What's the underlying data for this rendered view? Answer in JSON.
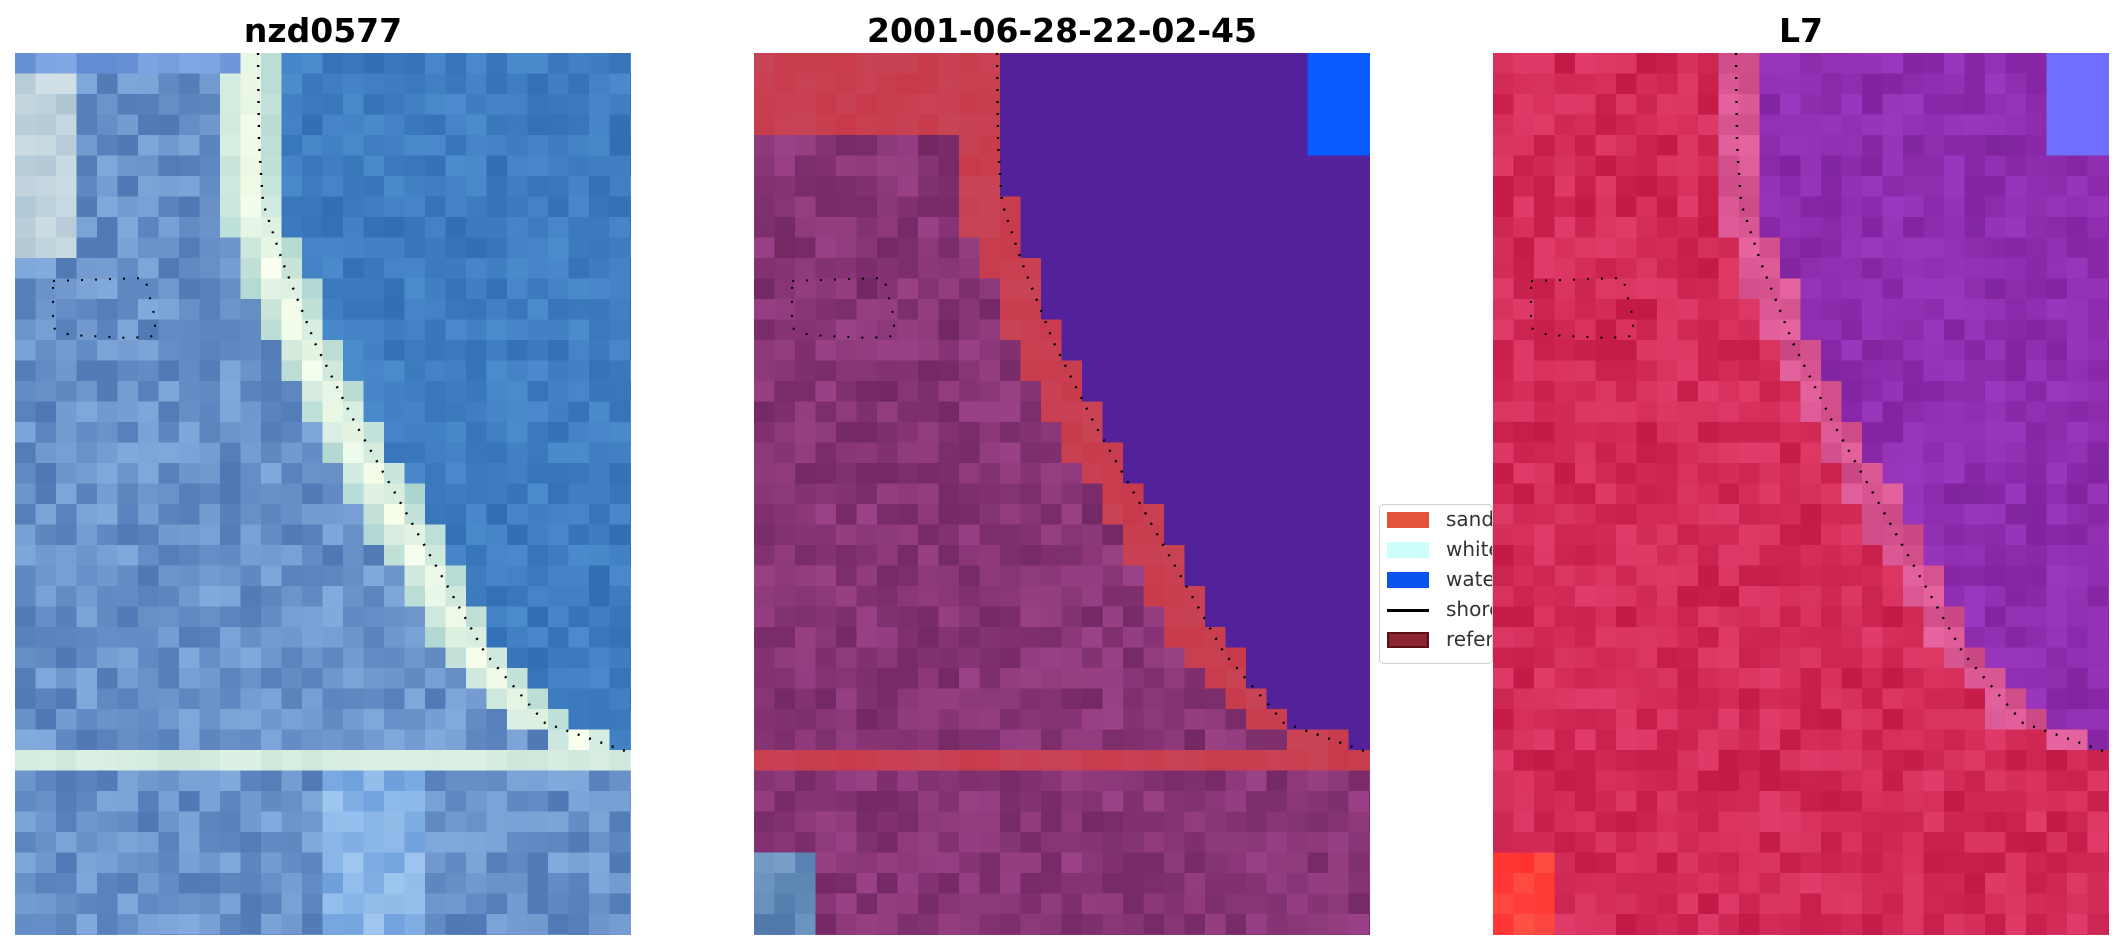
{
  "panels": [
    {
      "title": "nzd0577"
    },
    {
      "title": "2001-06-28-22-02-45"
    },
    {
      "title": "L7"
    }
  ],
  "legend": {
    "items": [
      {
        "label": "sand",
        "color": "#e4543a",
        "kind": "patch"
      },
      {
        "label": "white-water",
        "color": "#ccfdfb",
        "kind": "patch"
      },
      {
        "label": "water",
        "color": "#0b55ee",
        "kind": "patch"
      },
      {
        "label": "shoreline",
        "color": "#000000",
        "kind": "line"
      },
      {
        "label": "reference",
        "color": "#8e2431",
        "kind": "patch-outline"
      }
    ]
  },
  "colors": {
    "rgb_water": "#3a78bc",
    "rgb_sand_beach": "#eaf6e4",
    "rgb_land": "#6b8fc8",
    "class_water": "#53229a",
    "class_sand": "#c83a4b",
    "class_land": "#7e2e6c",
    "class_bluewater": "#0a5bff",
    "swir_land": "#c8234f",
    "swir_water": "#8a2a9c",
    "swir_corner": "#ff3a3a",
    "shoreline_dots": "#000000"
  }
}
